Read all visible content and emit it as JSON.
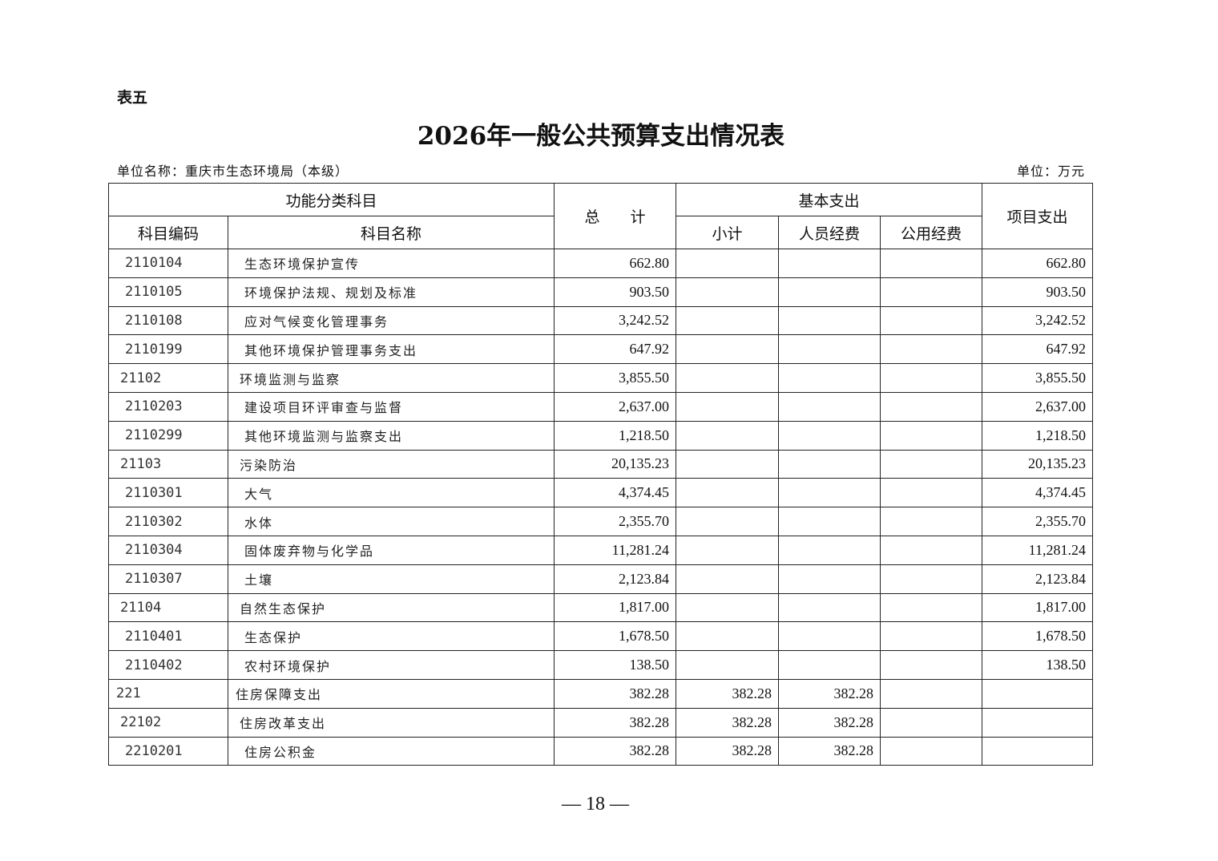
{
  "doc_label": "表五",
  "title": "2026年一般公共预算支出情况表",
  "unit_name": "单位名称：重庆市生态环境局（本级）",
  "unit": "单位：万元",
  "headers": {
    "category": "功能分类科目",
    "total": "总　　计",
    "basic": "基本支出",
    "project": "项目支出",
    "code": "科目编码",
    "name": "科目名称",
    "subtotal": "小计",
    "personnel": "人员经费",
    "public": "公用经费"
  },
  "rows": [
    {
      "code": "2110104",
      "name": "生态环境保护宣传",
      "level": 2,
      "total": "662.80",
      "subtotal": "",
      "personnel": "",
      "public": "",
      "project": "662.80"
    },
    {
      "code": "2110105",
      "name": "环境保护法规、规划及标准",
      "level": 2,
      "total": "903.50",
      "subtotal": "",
      "personnel": "",
      "public": "",
      "project": "903.50"
    },
    {
      "code": "2110108",
      "name": "应对气候变化管理事务",
      "level": 2,
      "total": "3,242.52",
      "subtotal": "",
      "personnel": "",
      "public": "",
      "project": "3,242.52"
    },
    {
      "code": "2110199",
      "name": "其他环境保护管理事务支出",
      "level": 2,
      "total": "647.92",
      "subtotal": "",
      "personnel": "",
      "public": "",
      "project": "647.92"
    },
    {
      "code": "21102",
      "name": "环境监测与监察",
      "level": 1,
      "total": "3,855.50",
      "subtotal": "",
      "personnel": "",
      "public": "",
      "project": "3,855.50"
    },
    {
      "code": "2110203",
      "name": "建设项目环评审查与监督",
      "level": 2,
      "total": "2,637.00",
      "subtotal": "",
      "personnel": "",
      "public": "",
      "project": "2,637.00"
    },
    {
      "code": "2110299",
      "name": "其他环境监测与监察支出",
      "level": 2,
      "total": "1,218.50",
      "subtotal": "",
      "personnel": "",
      "public": "",
      "project": "1,218.50"
    },
    {
      "code": "21103",
      "name": "污染防治",
      "level": 1,
      "total": "20,135.23",
      "subtotal": "",
      "personnel": "",
      "public": "",
      "project": "20,135.23"
    },
    {
      "code": "2110301",
      "name": "大气",
      "level": 2,
      "total": "4,374.45",
      "subtotal": "",
      "personnel": "",
      "public": "",
      "project": "4,374.45"
    },
    {
      "code": "2110302",
      "name": "水体",
      "level": 2,
      "total": "2,355.70",
      "subtotal": "",
      "personnel": "",
      "public": "",
      "project": "2,355.70"
    },
    {
      "code": "2110304",
      "name": "固体废弃物与化学品",
      "level": 2,
      "total": "11,281.24",
      "subtotal": "",
      "personnel": "",
      "public": "",
      "project": "11,281.24"
    },
    {
      "code": "2110307",
      "name": "土壤",
      "level": 2,
      "total": "2,123.84",
      "subtotal": "",
      "personnel": "",
      "public": "",
      "project": "2,123.84"
    },
    {
      "code": "21104",
      "name": "自然生态保护",
      "level": 1,
      "total": "1,817.00",
      "subtotal": "",
      "personnel": "",
      "public": "",
      "project": "1,817.00"
    },
    {
      "code": "2110401",
      "name": "生态保护",
      "level": 2,
      "total": "1,678.50",
      "subtotal": "",
      "personnel": "",
      "public": "",
      "project": "1,678.50"
    },
    {
      "code": "2110402",
      "name": "农村环境保护",
      "level": 2,
      "total": "138.50",
      "subtotal": "",
      "personnel": "",
      "public": "",
      "project": "138.50"
    },
    {
      "code": "221",
      "name": "住房保障支出",
      "level": 0,
      "total": "382.28",
      "subtotal": "382.28",
      "personnel": "382.28",
      "public": "",
      "project": ""
    },
    {
      "code": "22102",
      "name": "住房改革支出",
      "level": 1,
      "total": "382.28",
      "subtotal": "382.28",
      "personnel": "382.28",
      "public": "",
      "project": ""
    },
    {
      "code": "2210201",
      "name": "住房公积金",
      "level": 2,
      "total": "382.28",
      "subtotal": "382.28",
      "personnel": "382.28",
      "public": "",
      "project": ""
    }
  ],
  "page_number": "— 18 —"
}
